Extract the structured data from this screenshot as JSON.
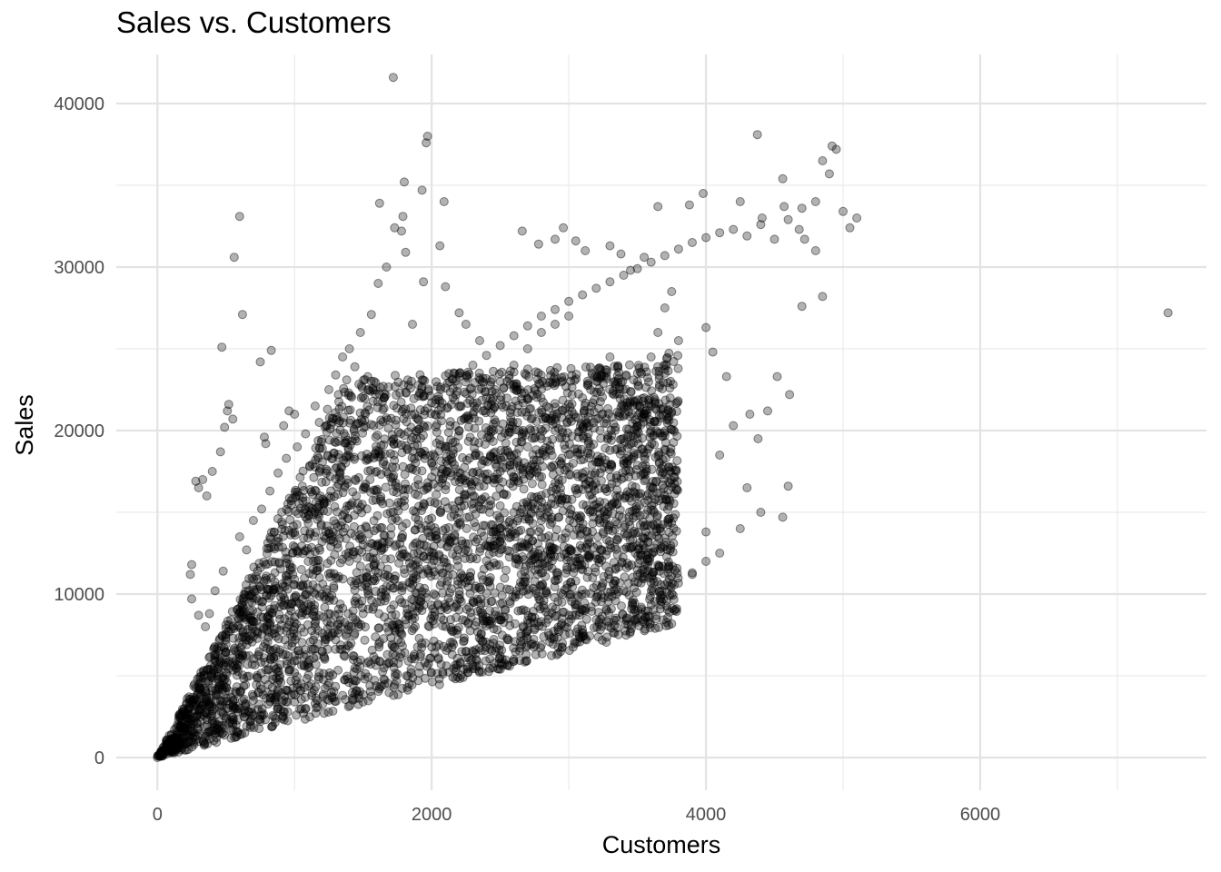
{
  "chart_data": {
    "type": "scatter",
    "title": "Sales vs. Customers",
    "xlabel": "Customers",
    "ylabel": "Sales",
    "xlim": [
      -300,
      7650
    ],
    "ylim": [
      -2000,
      43000
    ],
    "x_ticks": [
      0,
      2000,
      4000,
      6000
    ],
    "y_ticks": [
      0,
      10000,
      20000,
      30000,
      40000
    ],
    "x_tick_labels": [
      "0",
      "2000",
      "4000",
      "6000"
    ],
    "y_tick_labels": [
      "0",
      "10000",
      "20000",
      "30000",
      "40000"
    ],
    "grid": true,
    "point_color": "#000000",
    "point_alpha": 0.3,
    "points": [
      [
        0,
        0
      ],
      [
        20,
        200
      ],
      [
        50,
        500
      ],
      [
        80,
        700
      ],
      [
        120,
        1100
      ],
      [
        150,
        1400
      ],
      [
        200,
        1800
      ],
      [
        250,
        2300
      ],
      [
        300,
        2900
      ],
      [
        350,
        3400
      ],
      [
        400,
        4100
      ],
      [
        450,
        4600
      ],
      [
        500,
        5200
      ],
      [
        550,
        5800
      ],
      [
        600,
        6300
      ],
      [
        650,
        6900
      ],
      [
        700,
        7400
      ],
      [
        750,
        8000
      ],
      [
        800,
        8600
      ],
      [
        850,
        9100
      ],
      [
        900,
        9800
      ],
      [
        950,
        10300
      ],
      [
        1000,
        10900
      ],
      [
        1050,
        11500
      ],
      [
        1100,
        12000
      ],
      [
        1150,
        12600
      ],
      [
        1200,
        13200
      ],
      [
        1250,
        13700
      ],
      [
        1300,
        14300
      ],
      [
        1350,
        14800
      ],
      [
        1400,
        15400
      ],
      [
        1450,
        16000
      ],
      [
        1500,
        16400
      ],
      [
        1550,
        17000
      ],
      [
        1600,
        17500
      ],
      [
        1650,
        18100
      ],
      [
        1700,
        18600
      ],
      [
        1750,
        19200
      ],
      [
        1800,
        19700
      ],
      [
        1850,
        20200
      ],
      [
        1900,
        20700
      ],
      [
        1950,
        21200
      ],
      [
        2000,
        21700
      ],
      [
        2050,
        22100
      ],
      [
        2100,
        22600
      ],
      [
        2200,
        23300
      ],
      [
        2300,
        24000
      ],
      [
        2400,
        24600
      ],
      [
        2500,
        25200
      ],
      [
        2600,
        25800
      ],
      [
        2700,
        26400
      ],
      [
        2800,
        27000
      ],
      [
        2900,
        27400
      ],
      [
        3000,
        27900
      ],
      [
        3100,
        28300
      ],
      [
        3200,
        28700
      ],
      [
        3300,
        29100
      ],
      [
        3400,
        29500
      ],
      [
        3500,
        29900
      ],
      [
        3600,
        30300
      ],
      [
        3700,
        30700
      ],
      [
        3800,
        31100
      ],
      [
        3900,
        31500
      ],
      [
        4000,
        31800
      ],
      [
        4100,
        32100
      ],
      [
        4200,
        32300
      ],
      [
        4300,
        31900
      ],
      [
        4400,
        32600
      ],
      [
        4500,
        31700
      ],
      [
        4600,
        32900
      ],
      [
        4700,
        33600
      ],
      [
        4800,
        34000
      ],
      [
        4900,
        35700
      ],
      [
        4950,
        37200
      ],
      [
        5000,
        33400
      ],
      [
        5050,
        32400
      ],
      [
        5100,
        33000
      ],
      [
        4850,
        36500
      ],
      [
        4920,
        37400
      ],
      [
        4560,
        35400
      ],
      [
        4375,
        38100
      ],
      [
        3980,
        34500
      ],
      [
        3650,
        33700
      ],
      [
        3880,
        33800
      ],
      [
        4250,
        34000
      ],
      [
        4410,
        33000
      ],
      [
        4570,
        33700
      ],
      [
        4680,
        32300
      ],
      [
        4720,
        31700
      ],
      [
        4800,
        31000
      ],
      [
        4850,
        28200
      ],
      [
        4700,
        27600
      ],
      [
        4610,
        22200
      ],
      [
        4520,
        23300
      ],
      [
        4450,
        21200
      ],
      [
        4380,
        19500
      ],
      [
        4300,
        16500
      ],
      [
        4400,
        15000
      ],
      [
        4560,
        14700
      ],
      [
        4600,
        16600
      ],
      [
        4250,
        14000
      ],
      [
        4100,
        12500
      ],
      [
        3900,
        11300
      ],
      [
        4000,
        13800
      ],
      [
        4100,
        18500
      ],
      [
        4200,
        20300
      ],
      [
        4320,
        21000
      ],
      [
        4150,
        23300
      ],
      [
        4050,
        24800
      ],
      [
        4000,
        26300
      ],
      [
        3800,
        25500
      ],
      [
        3700,
        23500
      ],
      [
        3600,
        21500
      ],
      [
        3500,
        19500
      ],
      [
        3450,
        17500
      ],
      [
        3350,
        15500
      ],
      [
        3250,
        13800
      ],
      [
        3150,
        12300
      ],
      [
        3050,
        10800
      ],
      [
        2950,
        9500
      ],
      [
        2850,
        8700
      ],
      [
        2750,
        7900
      ],
      [
        2650,
        7600
      ],
      [
        2550,
        7300
      ],
      [
        2450,
        7000
      ],
      [
        2350,
        6700
      ],
      [
        2250,
        6500
      ],
      [
        2150,
        6300
      ],
      [
        2050,
        6100
      ],
      [
        1950,
        5800
      ],
      [
        1850,
        5400
      ],
      [
        1750,
        5100
      ],
      [
        1650,
        4800
      ],
      [
        1550,
        4400
      ],
      [
        1450,
        4100
      ],
      [
        1350,
        3800
      ],
      [
        1250,
        3500
      ],
      [
        1150,
        3300
      ],
      [
        1050,
        3000
      ],
      [
        950,
        2800
      ],
      [
        850,
        2500
      ],
      [
        750,
        2200
      ],
      [
        650,
        1900
      ],
      [
        550,
        1700
      ],
      [
        450,
        1500
      ],
      [
        350,
        1300
      ],
      [
        250,
        1000
      ],
      [
        150,
        700
      ],
      [
        100,
        400
      ],
      [
        60,
        200
      ],
      [
        2400,
        13000
      ],
      [
        2500,
        14000
      ],
      [
        2600,
        15000
      ],
      [
        2700,
        15500
      ],
      [
        2800,
        14500
      ],
      [
        2900,
        13500
      ],
      [
        3000,
        12800
      ],
      [
        3100,
        14000
      ],
      [
        3200,
        15500
      ],
      [
        3300,
        16500
      ],
      [
        3400,
        18000
      ],
      [
        3500,
        20000
      ],
      [
        3550,
        22000
      ],
      [
        3600,
        24500
      ],
      [
        3650,
        26000
      ],
      [
        3700,
        27500
      ],
      [
        3750,
        28500
      ],
      [
        3300,
        24500
      ],
      [
        3200,
        23000
      ],
      [
        3100,
        22000
      ],
      [
        3000,
        21000
      ],
      [
        2900,
        20000
      ],
      [
        2800,
        19500
      ],
      [
        2700,
        19000
      ],
      [
        2600,
        18500
      ],
      [
        2500,
        17500
      ],
      [
        2400,
        17000
      ],
      [
        2300,
        16000
      ],
      [
        2200,
        15000
      ],
      [
        2100,
        14000
      ],
      [
        2000,
        13500
      ],
      [
        1900,
        12500
      ],
      [
        1800,
        11500
      ],
      [
        1700,
        10500
      ],
      [
        1600,
        9500
      ],
      [
        1500,
        8800
      ],
      [
        1400,
        8000
      ],
      [
        1300,
        7200
      ],
      [
        1200,
        6500
      ],
      [
        1100,
        5800
      ],
      [
        1000,
        5200
      ],
      [
        900,
        4600
      ],
      [
        800,
        4000
      ],
      [
        700,
        3500
      ],
      [
        600,
        3000
      ],
      [
        500,
        2500
      ],
      [
        400,
        2100
      ],
      [
        300,
        1700
      ],
      [
        200,
        1300
      ],
      [
        1000,
        8000
      ],
      [
        1100,
        9000
      ],
      [
        1200,
        10000
      ],
      [
        1300,
        11000
      ],
      [
        1400,
        12000
      ],
      [
        1500,
        13000
      ],
      [
        1600,
        14000
      ],
      [
        1700,
        15000
      ],
      [
        1800,
        16000
      ],
      [
        1900,
        17000
      ],
      [
        2000,
        18000
      ],
      [
        2100,
        19000
      ],
      [
        2200,
        20000
      ],
      [
        2300,
        21000
      ],
      [
        2400,
        22000
      ],
      [
        2500,
        23000
      ],
      [
        2600,
        24000
      ],
      [
        2700,
        25000
      ],
      [
        2800,
        26000
      ],
      [
        2900,
        26500
      ],
      [
        3000,
        27000
      ],
      [
        1720,
        41600
      ],
      [
        1970,
        38000
      ],
      [
        1960,
        37600
      ],
      [
        1620,
        33900
      ],
      [
        1790,
        33100
      ],
      [
        1730,
        32400
      ],
      [
        1780,
        32200
      ],
      [
        1810,
        30900
      ],
      [
        1670,
        30000
      ],
      [
        1610,
        29000
      ],
      [
        1930,
        34700
      ],
      [
        1800,
        35200
      ],
      [
        2090,
        34000
      ],
      [
        2060,
        31300
      ],
      [
        2200,
        27200
      ],
      [
        2250,
        26500
      ],
      [
        2350,
        25500
      ],
      [
        2100,
        28800
      ],
      [
        1940,
        29100
      ],
      [
        1860,
        26500
      ],
      [
        1560,
        27100
      ],
      [
        1480,
        26000
      ],
      [
        1400,
        25000
      ],
      [
        1350,
        24500
      ],
      [
        1300,
        23400
      ],
      [
        1250,
        22500
      ],
      [
        1150,
        21500
      ],
      [
        1000,
        21000
      ],
      [
        960,
        21200
      ],
      [
        920,
        20300
      ],
      [
        600,
        33100
      ],
      [
        560,
        30600
      ],
      [
        620,
        27100
      ],
      [
        520,
        21600
      ],
      [
        470,
        25100
      ],
      [
        830,
        24900
      ],
      [
        750,
        24200
      ],
      [
        780,
        19600
      ],
      [
        790,
        19200
      ],
      [
        550,
        20700
      ],
      [
        510,
        21200
      ],
      [
        490,
        20200
      ],
      [
        460,
        18700
      ],
      [
        400,
        17500
      ],
      [
        330,
        17000
      ],
      [
        280,
        16900
      ],
      [
        360,
        16000
      ],
      [
        300,
        16500
      ],
      [
        250,
        11800
      ],
      [
        240,
        11200
      ],
      [
        250,
        9700
      ],
      [
        300,
        8700
      ],
      [
        420,
        10200
      ],
      [
        480,
        11400
      ],
      [
        380,
        8800
      ],
      [
        350,
        8000
      ],
      [
        600,
        13500
      ],
      [
        650,
        12700
      ],
      [
        700,
        14500
      ],
      [
        760,
        15200
      ],
      [
        820,
        16300
      ],
      [
        880,
        17400
      ],
      [
        940,
        18300
      ],
      [
        1020,
        19000
      ],
      [
        1080,
        19800
      ],
      [
        1180,
        20500
      ],
      [
        1240,
        21300
      ],
      [
        1320,
        22200
      ],
      [
        1380,
        23100
      ],
      [
        1440,
        23900
      ],
      [
        2660,
        32200
      ],
      [
        2780,
        31400
      ],
      [
        2900,
        31700
      ],
      [
        2960,
        32400
      ],
      [
        3050,
        31600
      ],
      [
        3120,
        31000
      ],
      [
        3300,
        31300
      ],
      [
        3380,
        30800
      ],
      [
        3450,
        29800
      ],
      [
        3550,
        30600
      ],
      [
        3050,
        8700
      ],
      [
        2950,
        8500
      ],
      [
        2650,
        7400
      ],
      [
        2880,
        9200
      ],
      [
        3200,
        9800
      ],
      [
        3400,
        10200
      ],
      [
        3600,
        10700
      ],
      [
        3750,
        11100
      ],
      [
        3900,
        11200
      ],
      [
        4000,
        12000
      ]
    ]
  }
}
